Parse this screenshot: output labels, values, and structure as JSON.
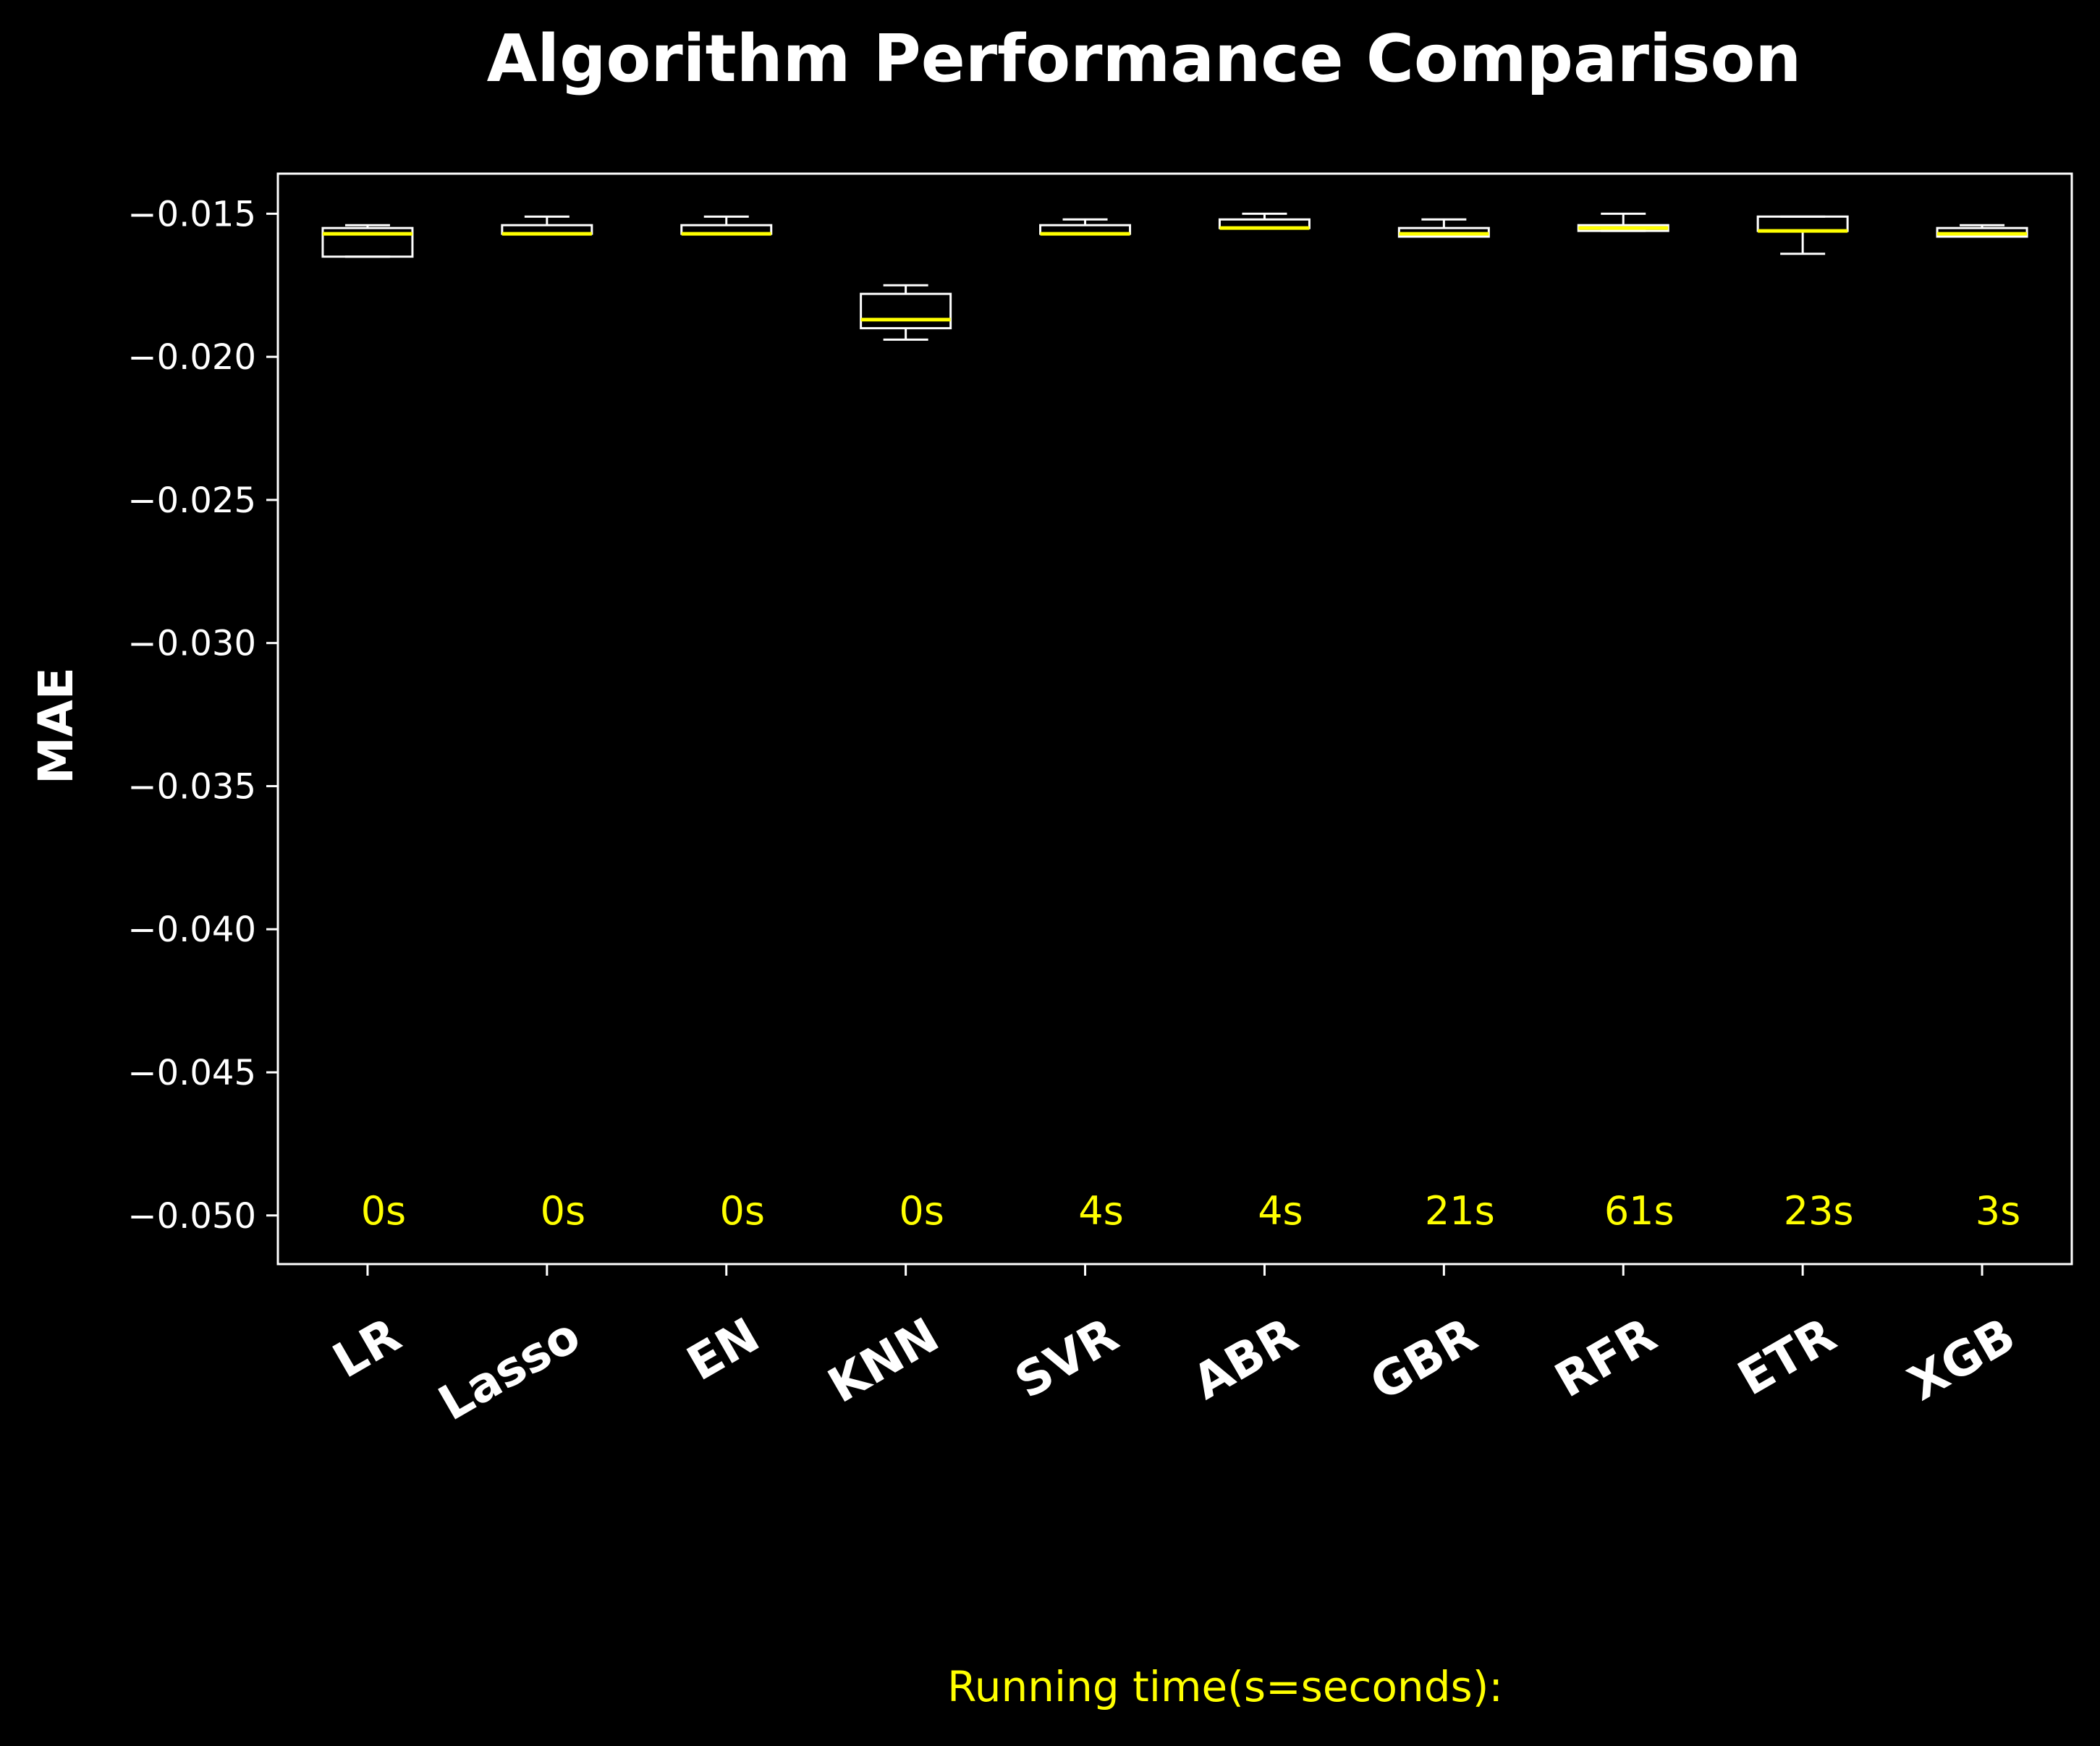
{
  "chart_data": {
    "type": "box",
    "title": "Algorithm Performance Comparison",
    "xlabel": "",
    "ylabel": "MAE",
    "ylim": [
      -0.0517,
      -0.0136
    ],
    "yticks": [
      -0.015,
      -0.02,
      -0.025,
      -0.03,
      -0.035,
      -0.04,
      -0.045,
      -0.05
    ],
    "ytick_labels": [
      "−0.015",
      "−0.020",
      "−0.025",
      "−0.030",
      "−0.035",
      "−0.040",
      "−0.045",
      "−0.050"
    ],
    "categories": [
      "LR",
      "Lasso",
      "EN",
      "KNN",
      "SVR",
      "ABR",
      "GBR",
      "RFR",
      "ETR",
      "XGB"
    ],
    "boxes": [
      {
        "name": "LR",
        "whisker_high": -0.0154,
        "q3": -0.0155,
        "median": -0.0157,
        "q1": -0.0165,
        "whisker_low": -0.0165
      },
      {
        "name": "Lasso",
        "whisker_high": -0.0151,
        "q3": -0.0154,
        "median": -0.0157,
        "q1": -0.0157,
        "whisker_low": -0.0157
      },
      {
        "name": "EN",
        "whisker_high": -0.0151,
        "q3": -0.0154,
        "median": -0.0157,
        "q1": -0.0157,
        "whisker_low": -0.0157
      },
      {
        "name": "KNN",
        "whisker_high": -0.0175,
        "q3": -0.0178,
        "median": -0.0187,
        "q1": -0.019,
        "whisker_low": -0.0194
      },
      {
        "name": "SVR",
        "whisker_high": -0.0152,
        "q3": -0.0154,
        "median": -0.0157,
        "q1": -0.0157,
        "whisker_low": -0.0157
      },
      {
        "name": "ABR",
        "whisker_high": -0.015,
        "q3": -0.0152,
        "median": -0.0155,
        "q1": -0.0155,
        "whisker_low": -0.0155
      },
      {
        "name": "GBR",
        "whisker_high": -0.0152,
        "q3": -0.0155,
        "median": -0.0157,
        "q1": -0.0158,
        "whisker_low": -0.0158
      },
      {
        "name": "RFR",
        "whisker_high": -0.015,
        "q3": -0.0154,
        "median": -0.0155,
        "q1": -0.0156,
        "whisker_low": -0.0156
      },
      {
        "name": "ETR",
        "whisker_high": -0.0151,
        "q3": -0.0151,
        "median": -0.0156,
        "q1": -0.0156,
        "whisker_low": -0.0164
      },
      {
        "name": "XGB",
        "whisker_high": -0.0154,
        "q3": -0.0155,
        "median": -0.0157,
        "q1": -0.0158,
        "whisker_low": -0.0158
      }
    ],
    "running_times": [
      "0s",
      "0s",
      "0s",
      "0s",
      "4s",
      "4s",
      "21s",
      "61s",
      "23s",
      "3s"
    ],
    "running_time_label": "Running time(s=seconds):",
    "grid": false,
    "colors": {
      "background": "#000000",
      "axes": "#ffffff",
      "box": "#ffffff",
      "median": "#ffff00",
      "annotation": "#ffff00"
    }
  }
}
